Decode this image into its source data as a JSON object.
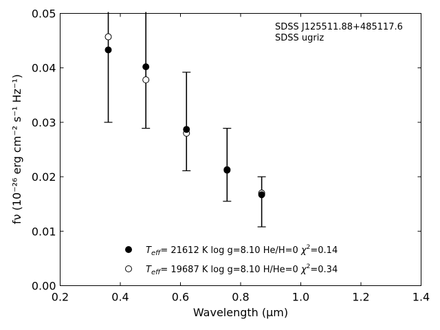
{
  "chart_data": {
    "type": "scatter",
    "annotation": {
      "line1": "SDSS J125511.88+485117.6",
      "line2": "SDSS ugriz"
    },
    "xlabel": "Wavelength (μm)",
    "ylabel": "fν (10⁻²⁶ erg cm⁻² s⁻¹ Hz⁻¹)",
    "xlim": [
      0.2,
      1.4
    ],
    "ylim": [
      0.0,
      0.05
    ],
    "xticks": [
      "0.2",
      "0.4",
      "0.6",
      "0.8",
      "1.0",
      "1.2",
      "1.4"
    ],
    "yticks": [
      "0.00",
      "0.01",
      "0.02",
      "0.03",
      "0.04",
      "0.05"
    ],
    "observed": {
      "x": [
        0.36,
        0.485,
        0.62,
        0.755,
        0.87
      ],
      "y": [
        0.0433,
        0.0402,
        0.0287,
        0.0212,
        0.0167
      ],
      "err_low": [
        0.03,
        0.0289,
        0.0211,
        0.0155,
        0.0108
      ],
      "err_high": [
        0.0505,
        0.0505,
        0.0392,
        0.0289,
        0.02
      ]
    },
    "model": {
      "x": [
        0.36,
        0.485,
        0.62,
        0.755,
        0.87
      ],
      "y": [
        0.0457,
        0.0378,
        0.028,
        0.0213,
        0.017
      ]
    },
    "legend": {
      "placement": "lower center",
      "entries": [
        {
          "marker": "filled",
          "teff": "21612",
          "logg": "8.10",
          "comp": "He/H=0",
          "chi2": "0.14"
        },
        {
          "marker": "open",
          "teff": "19687",
          "logg": "8.10",
          "comp": "H/He=0",
          "chi2": "0.34"
        }
      ]
    }
  }
}
